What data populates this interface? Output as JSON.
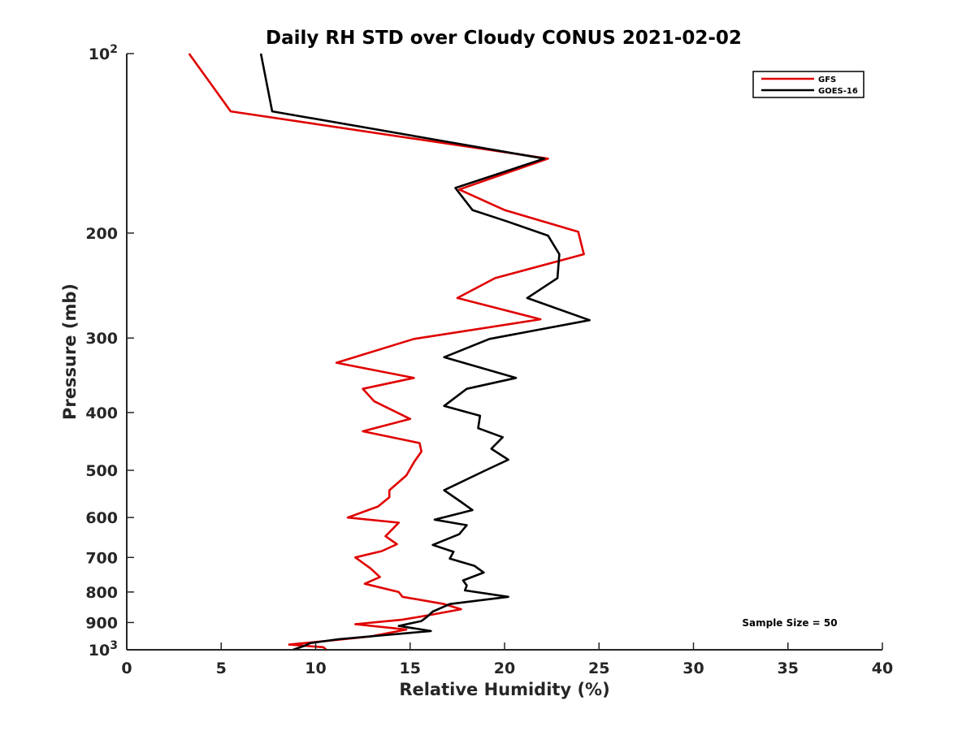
{
  "chart_data": {
    "type": "line",
    "title": "Daily RH STD over Cloudy CONUS 2021-02-02",
    "xlabel": "Relative Humidity (%)",
    "ylabel": "Pressure (mb)",
    "xlim": [
      0,
      40
    ],
    "ylim": [
      100,
      1000
    ],
    "y_scale": "log",
    "y_reversed": true,
    "grid": false,
    "legend_position": "top-right",
    "x_ticks": [
      0,
      5,
      10,
      15,
      20,
      25,
      30,
      35,
      40
    ],
    "y_ticks": [
      {
        "value": 100,
        "base": "10",
        "exp": "2"
      },
      {
        "value": 200,
        "label": "200"
      },
      {
        "value": 300,
        "label": "300"
      },
      {
        "value": 400,
        "label": "400"
      },
      {
        "value": 500,
        "label": "500"
      },
      {
        "value": 600,
        "label": "600"
      },
      {
        "value": 700,
        "label": "700"
      },
      {
        "value": 800,
        "label": "800"
      },
      {
        "value": 900,
        "label": "900"
      },
      {
        "value": 1000,
        "base": "10",
        "exp": "3"
      }
    ],
    "annotation": "Sample Size = 50",
    "series": [
      {
        "name": "GFS",
        "color": "#e00000",
        "points": [
          [
            3.3,
            100
          ],
          [
            5.5,
            125
          ],
          [
            22.3,
            150
          ],
          [
            17.6,
            169
          ],
          [
            20.0,
            183
          ],
          [
            23.9,
            199
          ],
          [
            24.2,
            217
          ],
          [
            19.5,
            238
          ],
          [
            17.5,
            257
          ],
          [
            21.9,
            279
          ],
          [
            15.2,
            301
          ],
          [
            11.1,
            330
          ],
          [
            15.2,
            350
          ],
          [
            12.5,
            365
          ],
          [
            13.1,
            383
          ],
          [
            15.0,
            410
          ],
          [
            12.5,
            430
          ],
          [
            15.5,
            450
          ],
          [
            15.6,
            465
          ],
          [
            15.2,
            485
          ],
          [
            14.8,
            510
          ],
          [
            13.9,
            540
          ],
          [
            13.9,
            555
          ],
          [
            13.3,
            575
          ],
          [
            11.7,
            600
          ],
          [
            14.4,
            612
          ],
          [
            13.7,
            645
          ],
          [
            14.3,
            665
          ],
          [
            13.5,
            683
          ],
          [
            12.1,
            700
          ],
          [
            12.9,
            730
          ],
          [
            13.4,
            755
          ],
          [
            12.6,
            775
          ],
          [
            14.4,
            800
          ],
          [
            14.6,
            815
          ],
          [
            16.8,
            838
          ],
          [
            17.7,
            855
          ],
          [
            16.0,
            875
          ],
          [
            14.6,
            890
          ],
          [
            12.1,
            906
          ],
          [
            14.8,
            925
          ],
          [
            12.9,
            950
          ],
          [
            10.8,
            965
          ],
          [
            8.6,
            980
          ],
          [
            10.4,
            990
          ],
          [
            10.6,
            1002
          ]
        ]
      },
      {
        "name": "GOES-16",
        "color": "#000000",
        "points": [
          [
            7.1,
            100
          ],
          [
            7.7,
            125
          ],
          [
            22.1,
            150
          ],
          [
            17.4,
            168
          ],
          [
            18.3,
            183
          ],
          [
            20.1,
            191
          ],
          [
            22.3,
            202
          ],
          [
            22.9,
            217
          ],
          [
            22.8,
            238
          ],
          [
            21.2,
            257
          ],
          [
            24.5,
            280
          ],
          [
            19.2,
            301
          ],
          [
            16.8,
            323
          ],
          [
            20.6,
            350
          ],
          [
            18.0,
            365
          ],
          [
            16.8,
            390
          ],
          [
            18.7,
            405
          ],
          [
            18.6,
            425
          ],
          [
            19.9,
            440
          ],
          [
            19.3,
            460
          ],
          [
            20.2,
            480
          ],
          [
            19.0,
            500
          ],
          [
            16.8,
            540
          ],
          [
            17.7,
            565
          ],
          [
            18.3,
            583
          ],
          [
            16.3,
            605
          ],
          [
            18.0,
            618
          ],
          [
            17.6,
            640
          ],
          [
            16.2,
            667
          ],
          [
            17.3,
            685
          ],
          [
            17.1,
            703
          ],
          [
            18.4,
            723
          ],
          [
            18.9,
            742
          ],
          [
            17.8,
            765
          ],
          [
            18.0,
            780
          ],
          [
            17.9,
            795
          ],
          [
            20.2,
            815
          ],
          [
            17.1,
            838
          ],
          [
            16.2,
            863
          ],
          [
            15.9,
            880
          ],
          [
            15.6,
            895
          ],
          [
            14.4,
            912
          ],
          [
            16.1,
            930
          ],
          [
            11.2,
            960
          ],
          [
            9.7,
            975
          ],
          [
            9.4,
            985
          ],
          [
            8.8,
            1000
          ]
        ]
      }
    ]
  }
}
